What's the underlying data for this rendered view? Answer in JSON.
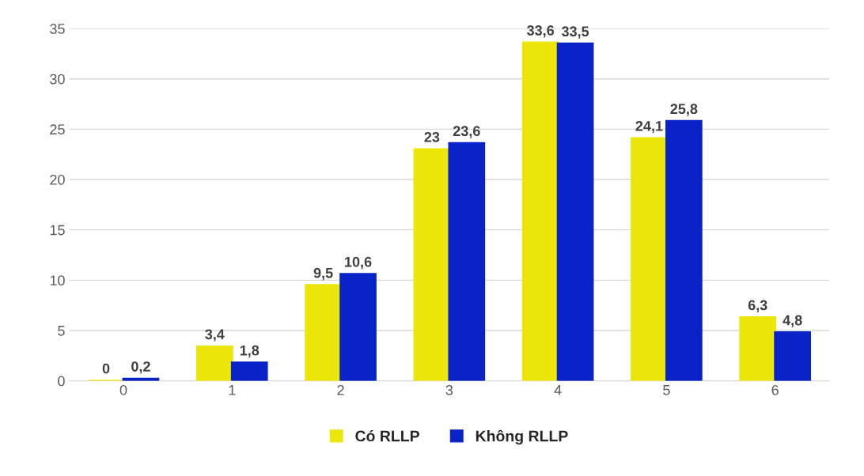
{
  "chart_data": {
    "type": "bar",
    "categories": [
      "0",
      "1",
      "2",
      "3",
      "4",
      "5",
      "6"
    ],
    "series": [
      {
        "name": "Có RLLP",
        "color": "#ede60a",
        "values": [
          0,
          3.4,
          9.5,
          23,
          33.6,
          24.1,
          6.3
        ],
        "value_labels": [
          "0",
          "3,4",
          "9,5",
          "23",
          "33,6",
          "24,1",
          "6,3"
        ]
      },
      {
        "name": "Không RLLP",
        "color": "#0a23c8",
        "values": [
          0.2,
          1.8,
          10.6,
          23.6,
          33.5,
          25.8,
          4.8
        ],
        "value_labels": [
          "0,2",
          "1,8",
          "10,6",
          "23,6",
          "33,5",
          "25,8",
          "4,8"
        ]
      }
    ],
    "ylim": [
      0,
      35
    ],
    "yticks": [
      0,
      5,
      10,
      15,
      20,
      25,
      30,
      35
    ],
    "grid": "y",
    "legend": "bottom"
  }
}
